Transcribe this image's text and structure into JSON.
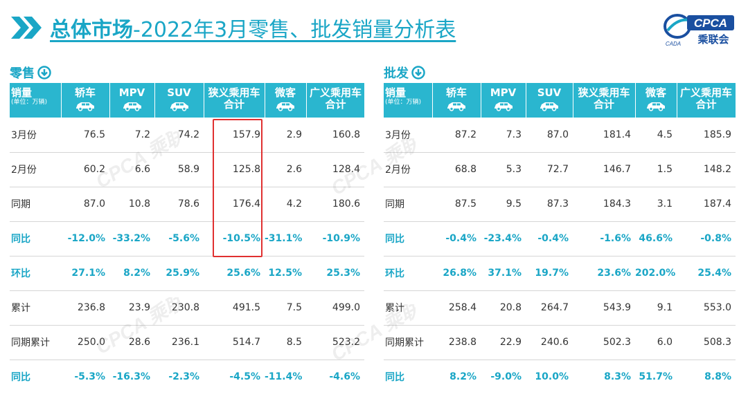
{
  "header": {
    "title_bold": "总体市场",
    "title_rest": "-2022年3月零售、批发销量分析表",
    "logo_text": "CPCA",
    "logo_subtext": "乘联会",
    "logo_small": "CADA"
  },
  "colors": {
    "accent": "#1aa6c6",
    "header_bg": "#2ab6cf",
    "highlight_box": "#e03030"
  },
  "icons": [
    "chevron-double-right-icon",
    "download-circle-icon",
    "car-icon"
  ],
  "watermark": "CPCA 乘联会",
  "column_headers": {
    "label_main": "销量",
    "label_sub": "(单位：万辆)",
    "cols": [
      "轿车",
      "MPV",
      "SUV",
      "狭义乘用车合计",
      "微客",
      "广义乘用车合计"
    ]
  },
  "retail": {
    "label": "零售",
    "rows": [
      {
        "name": "3月份",
        "values": [
          "76.5",
          "7.2",
          "74.2",
          "157.9",
          "2.9",
          "160.8"
        ]
      },
      {
        "name": "2月份",
        "values": [
          "60.2",
          "6.6",
          "58.9",
          "125.8",
          "2.6",
          "128.4"
        ]
      },
      {
        "name": "同期",
        "values": [
          "87.0",
          "10.8",
          "78.6",
          "176.4",
          "4.2",
          "180.6"
        ]
      },
      {
        "name": "同比",
        "values": [
          "-12.0%",
          "-33.2%",
          "-5.6%",
          "-10.5%",
          "-31.1%",
          "-10.9%"
        ]
      },
      {
        "name": "环比",
        "values": [
          "27.1%",
          "8.2%",
          "25.9%",
          "25.6%",
          "12.5%",
          "25.3%"
        ]
      },
      {
        "name": "累计",
        "values": [
          "236.8",
          "23.9",
          "230.8",
          "491.5",
          "7.5",
          "499.0"
        ]
      },
      {
        "name": "同期累计",
        "values": [
          "250.0",
          "28.6",
          "236.1",
          "514.7",
          "8.5",
          "523.2"
        ]
      },
      {
        "name": "同比",
        "values": [
          "-5.3%",
          "-16.3%",
          "-2.3%",
          "-4.5%",
          "-11.4%",
          "-4.6%"
        ]
      }
    ]
  },
  "wholesale": {
    "label": "批发",
    "rows": [
      {
        "name": "3月份",
        "values": [
          "87.2",
          "7.3",
          "87.0",
          "181.4",
          "4.5",
          "185.9"
        ]
      },
      {
        "name": "2月份",
        "values": [
          "68.8",
          "5.3",
          "72.7",
          "146.7",
          "1.5",
          "148.2"
        ]
      },
      {
        "name": "同期",
        "values": [
          "87.5",
          "9.5",
          "87.3",
          "184.3",
          "3.1",
          "187.4"
        ]
      },
      {
        "name": "同比",
        "values": [
          "-0.4%",
          "-23.4%",
          "-0.4%",
          "-1.6%",
          "46.6%",
          "-0.8%"
        ]
      },
      {
        "name": "环比",
        "values": [
          "26.8%",
          "37.1%",
          "19.7%",
          "23.6%",
          "202.0%",
          "25.4%"
        ]
      },
      {
        "name": "累计",
        "values": [
          "258.4",
          "20.8",
          "264.7",
          "543.9",
          "9.1",
          "553.0"
        ]
      },
      {
        "name": "同期累计",
        "values": [
          "238.8",
          "22.9",
          "240.6",
          "502.3",
          "6.0",
          "508.3"
        ]
      },
      {
        "name": "同比",
        "values": [
          "8.2%",
          "-9.0%",
          "10.0%",
          "8.3%",
          "51.7%",
          "8.8%"
        ]
      }
    ]
  }
}
